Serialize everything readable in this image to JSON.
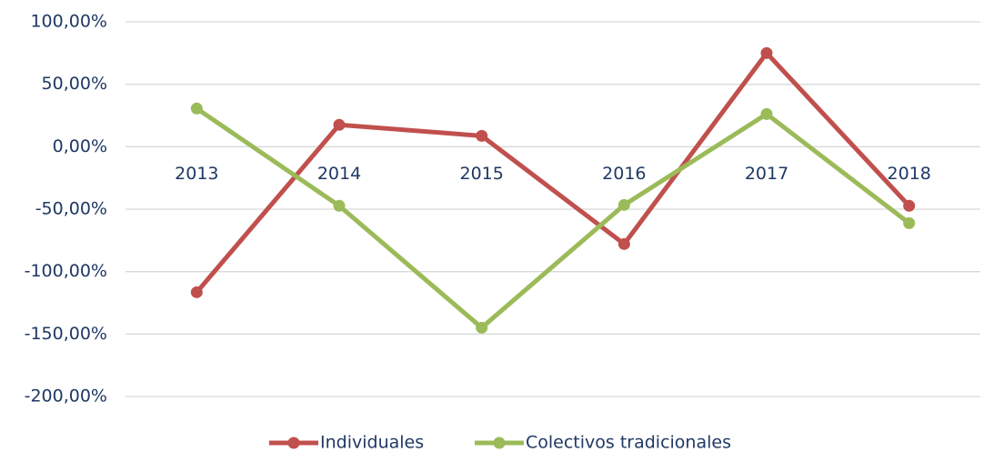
{
  "chart_data": {
    "type": "line",
    "categories": [
      "2013",
      "2014",
      "2015",
      "2016",
      "2017",
      "2018"
    ],
    "series": [
      {
        "name": "Individuales",
        "color": "#c0504d",
        "values": [
          -116.5,
          17.5,
          8.7,
          -77.9,
          75,
          -47.3
        ]
      },
      {
        "name": "Colectivos tradicionales",
        "color": "#9bbb59",
        "values": [
          30.6,
          -47.3,
          -144.9,
          -46.6,
          26.2,
          -61.2
        ]
      }
    ],
    "ylim": [
      -200,
      100
    ],
    "yticks": [
      {
        "value": 100,
        "label": "100,00%"
      },
      {
        "value": 50,
        "label": "50,00%"
      },
      {
        "value": 0,
        "label": "0,00%"
      },
      {
        "value": -50,
        "label": "-50,00%"
      },
      {
        "value": -100,
        "label": "-100,00%"
      },
      {
        "value": -150,
        "label": "-150,00%"
      },
      {
        "value": -200,
        "label": "-200,00%"
      }
    ],
    "grid": true,
    "legend": "bottom"
  }
}
